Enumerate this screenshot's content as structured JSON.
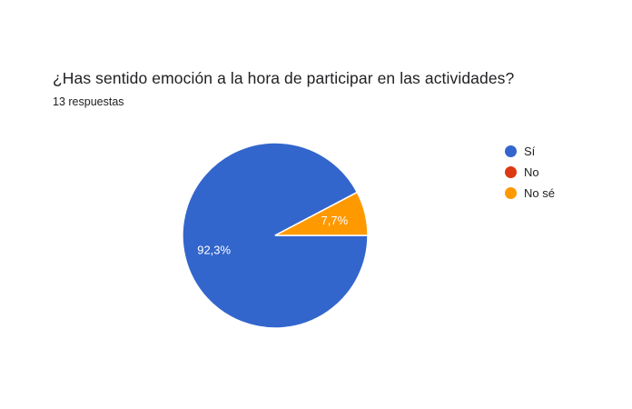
{
  "question": {
    "title": "¿Has sentido emoción a la hora de participar en las actividades?",
    "responses": "13 respuestas"
  },
  "chart_data": {
    "type": "pie",
    "categories": [
      "Sí",
      "No",
      "No sé"
    ],
    "values": [
      92.3,
      0,
      7.7
    ],
    "labels": [
      "92,3%",
      "",
      "7,7%"
    ],
    "colors": [
      "#3366cc",
      "#dc3912",
      "#ff9900"
    ],
    "legend": "right"
  }
}
